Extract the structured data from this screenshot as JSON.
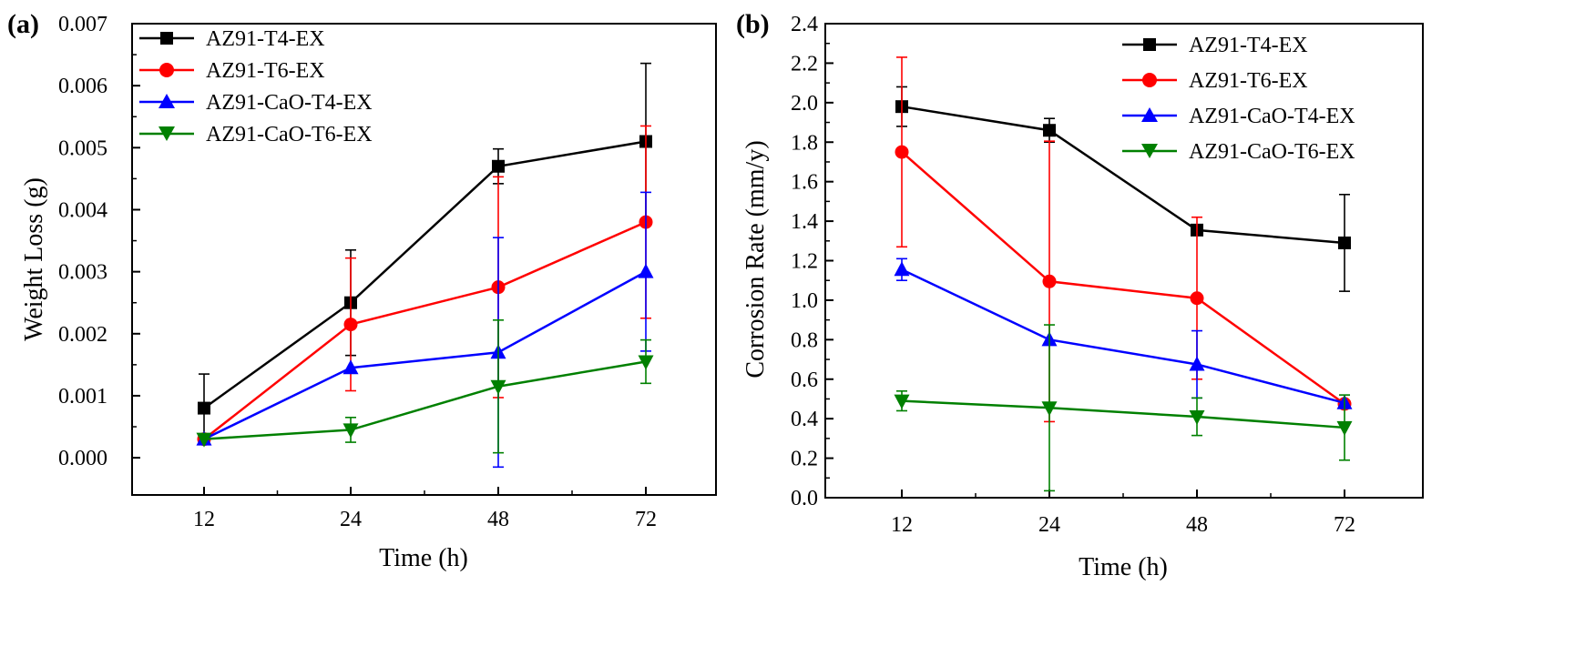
{
  "chart_data": [
    {
      "type": "line",
      "panel_label": "(a)",
      "xlabel": "Time (h)",
      "ylabel": "Weight Loss (g)",
      "categories": [
        "12",
        "24",
        "48",
        "72"
      ],
      "ylim": [
        -0.0006,
        0.007
      ],
      "yticks": [
        "0.000",
        "0.001",
        "0.002",
        "0.003",
        "0.004",
        "0.005",
        "0.006",
        "0.007"
      ],
      "ytick_values": [
        0,
        0.001,
        0.002,
        0.003,
        0.004,
        0.005,
        0.006,
        0.007
      ],
      "legend_position": "top-left",
      "series": [
        {
          "name": "AZ91-T4-EX",
          "color": "#000000",
          "marker": "square",
          "values": [
            0.0008,
            0.0025,
            0.0047,
            0.0051
          ],
          "errors": [
            0.00055,
            0.00085,
            0.00028,
            0.00126
          ]
        },
        {
          "name": "AZ91-T6-EX",
          "color": "#ff0000",
          "marker": "circle",
          "values": [
            0.0003,
            0.00215,
            0.00275,
            0.0038
          ],
          "errors": [
            0.0,
            0.00107,
            0.00178,
            0.00155
          ]
        },
        {
          "name": "AZ91-CaO-T4-EX",
          "color": "#0000ff",
          "marker": "triangle-up",
          "values": [
            0.0003,
            0.00145,
            0.0017,
            0.003
          ],
          "errors": [
            0.0,
            0.0,
            0.00185,
            0.00128
          ]
        },
        {
          "name": "AZ91-CaO-T6-EX",
          "color": "#008000",
          "marker": "triangle-down",
          "values": [
            0.0003,
            0.00045,
            0.00115,
            0.00155
          ],
          "errors": [
            0.0,
            0.0002,
            0.00107,
            0.00035
          ]
        }
      ]
    },
    {
      "type": "line",
      "panel_label": "(b)",
      "xlabel": "Time (h)",
      "ylabel": "Corrosion Rate (mm/y)",
      "categories": [
        "12",
        "24",
        "48",
        "72"
      ],
      "ylim": [
        0.0,
        2.4
      ],
      "yticks": [
        "0.0",
        "0.2",
        "0.4",
        "0.6",
        "0.8",
        "1.0",
        "1.2",
        "1.4",
        "1.6",
        "1.8",
        "2.0",
        "2.2",
        "2.4"
      ],
      "ytick_values": [
        0.0,
        0.2,
        0.4,
        0.6,
        0.8,
        1.0,
        1.2,
        1.4,
        1.6,
        1.8,
        2.0,
        2.2,
        2.4
      ],
      "legend_position": "top-right",
      "series": [
        {
          "name": "AZ91-T4-EX",
          "color": "#000000",
          "marker": "square",
          "values": [
            1.98,
            1.86,
            1.355,
            1.29
          ],
          "errors": [
            0.1,
            0.06,
            0.0,
            0.245
          ]
        },
        {
          "name": "AZ91-T6-EX",
          "color": "#ff0000",
          "marker": "circle",
          "values": [
            1.75,
            1.095,
            1.01,
            0.475
          ],
          "errors": [
            0.48,
            0.71,
            0.41,
            0.0
          ]
        },
        {
          "name": "AZ91-CaO-T4-EX",
          "color": "#0000ff",
          "marker": "triangle-up",
          "values": [
            1.155,
            0.8,
            0.675,
            0.48
          ],
          "errors": [
            0.055,
            0.0,
            0.17,
            0.0
          ]
        },
        {
          "name": "AZ91-CaO-T6-EX",
          "color": "#008000",
          "marker": "triangle-down",
          "values": [
            0.49,
            0.455,
            0.41,
            0.355
          ],
          "errors": [
            0.05,
            0.42,
            0.095,
            0.165
          ]
        }
      ]
    }
  ]
}
